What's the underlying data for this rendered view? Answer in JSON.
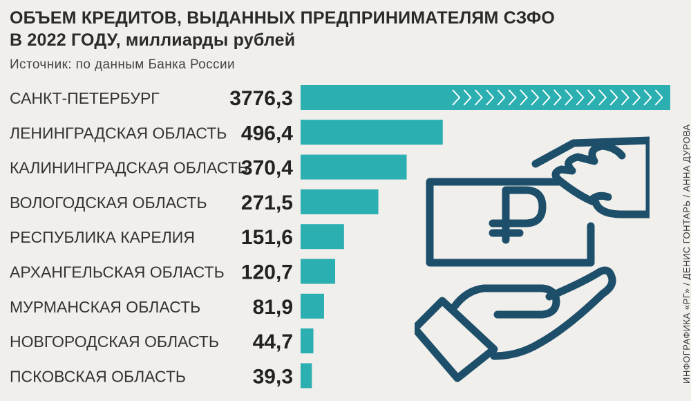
{
  "title_line1": "ОБЪЕМ КРЕДИТОВ, ВЫДАННЫХ ПРЕДПРИНИМАТЕЛЯМ СЗФО",
  "title_line2": "В 2022 ГОДУ, миллиарды рублей",
  "source": "Источник: по данным Банка России",
  "credit": "ИНФОГРАФИКА «РГ» / ДЕНИС ГОНТАРЬ / АННА ДУРОВА",
  "colors": {
    "bar": "#2bafb0",
    "icon": "#1d4f6a",
    "background": "#f1efeb"
  },
  "icons": [
    "banknote-ruble-icon",
    "hand-icon"
  ],
  "chart_data": {
    "type": "bar",
    "orientation": "horizontal",
    "categories": [
      "САНКТ-ПЕТЕРБУРГ",
      "ЛЕНИНГРАДСКАЯ ОБЛАСТЬ",
      "КАЛИНИНГРАДСКАЯ ОБЛАСТЬ",
      "ВОЛОГОДСКАЯ ОБЛАСТЬ",
      "РЕСПУБЛИКА КАРЕЛИЯ",
      "АРХАНГЕЛЬСКАЯ ОБЛАСТЬ",
      "МУРМАНСКАЯ ОБЛАСТЬ",
      "НОВГОРОДСКАЯ ОБЛАСТЬ",
      "ПСКОВСКАЯ ОБЛАСТЬ"
    ],
    "values": [
      3776.3,
      496.4,
      370.4,
      271.5,
      151.6,
      120.7,
      81.9,
      44.7,
      39.3
    ],
    "value_labels": [
      "3776,3",
      "496,4",
      "370,4",
      "271,5",
      "151,6",
      "120,7",
      "81,9",
      "44,7",
      "39,3"
    ],
    "truncated_bars": [
      "САНКТ-ПЕТЕРБУРГ"
    ]
  }
}
